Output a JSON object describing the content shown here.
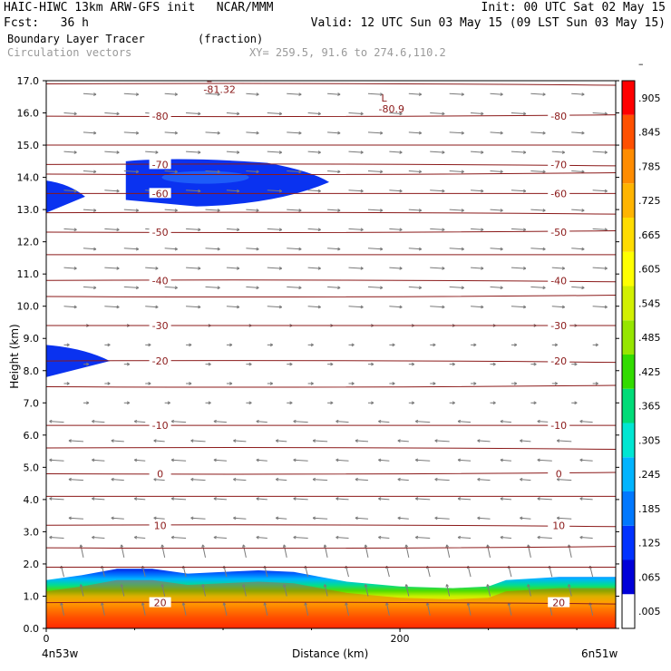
{
  "header": {
    "line1_left": "HAIC-HIWC 13km ARW-GFS init   NCAR/MMM",
    "line1_right": "Init: 00 UTC Sat 02 May 15",
    "line2_left": "Fcst:   36 h",
    "line2_right": "Valid: 12 UTC Sun 03 May 15 (09 LST Sun 03 May 15)",
    "field_name": "Boundary Layer Tracer",
    "field_units": "(fraction)",
    "vector_name": "Circulation vectors",
    "xy_range": "XY= 259.5, 91.6 to 274.6,110.2"
  },
  "colors": {
    "contour": "#8b1a1a",
    "vector": "#7a7a7a",
    "colorbar": [
      "#ffffff",
      "#0000d8",
      "#0032ff",
      "#0078ff",
      "#00b4ff",
      "#00e6d2",
      "#00dc78",
      "#32dc00",
      "#96e600",
      "#d2f000",
      "#ffff00",
      "#ffdc00",
      "#ffb400",
      "#ff8c00",
      "#ff5000",
      "#ff0000"
    ]
  },
  "chart_data": {
    "type": "heatmap",
    "ylabel": "Height (km)",
    "xlabel": "Distance (km)",
    "x_left_label": "4n53w",
    "x_right_label": "6n51w",
    "ylim": [
      0,
      17
    ],
    "xlim": [
      0,
      322
    ],
    "y_ticks": [
      "0.0",
      "1.0",
      "2.0",
      "3.0",
      "4.0",
      "5.0",
      "6.0",
      "7.0",
      "8.0",
      "9.0",
      "10.0",
      "11.0",
      "12.0",
      "13.0",
      "14.0",
      "15.0",
      "16.0",
      "17.0"
    ],
    "x_ticks": [
      {
        "value": 0,
        "label": "0"
      },
      {
        "value": 200,
        "label": "200"
      }
    ],
    "colorbar_labels": [
      ".005",
      ".065",
      ".125",
      ".185",
      ".245",
      ".305",
      ".365",
      ".425",
      ".485",
      ".545",
      ".605",
      ".665",
      ".725",
      ".785",
      ".845",
      ".905",
      "–"
    ],
    "temperature_contours": [
      {
        "y": 0.8,
        "label": "20"
      },
      {
        "y": 1.9
      },
      {
        "y": 2.5
      },
      {
        "y": 3.2,
        "label": "10"
      },
      {
        "y": 4.1
      },
      {
        "y": 4.8,
        "label": "0"
      },
      {
        "y": 5.6
      },
      {
        "y": 6.3,
        "label": "-10"
      },
      {
        "y": 7.5
      },
      {
        "y": 8.3,
        "label": "-20"
      },
      {
        "y": 9.4,
        "label": "-30"
      },
      {
        "y": 10.3
      },
      {
        "y": 10.8,
        "label": "-40"
      },
      {
        "y": 11.6
      },
      {
        "y": 12.3,
        "label": "-50"
      },
      {
        "y": 12.9
      },
      {
        "y": 13.5,
        "label": "-60"
      },
      {
        "y": 14.1
      },
      {
        "y": 14.4,
        "label": "-70"
      },
      {
        "y": 15.0
      },
      {
        "y": 15.9,
        "label": "-80"
      },
      {
        "y": 16.9
      }
    ],
    "low_markers": [
      {
        "x": 92,
        "y": 16.9,
        "symbol": "L",
        "value": "-81.32"
      },
      {
        "x": 191,
        "y": 16.3,
        "symbol": "L",
        "value": "-80.9"
      }
    ],
    "tracer_high_regions": [
      {
        "x0": 45,
        "x1": 160,
        "y0": 13.1,
        "y1": 14.6
      },
      {
        "x0": 0,
        "x1": 22,
        "y0": 12.9,
        "y1": 13.9
      },
      {
        "x0": 0,
        "x1": 36,
        "y0": 7.8,
        "y1": 8.8
      }
    ]
  }
}
